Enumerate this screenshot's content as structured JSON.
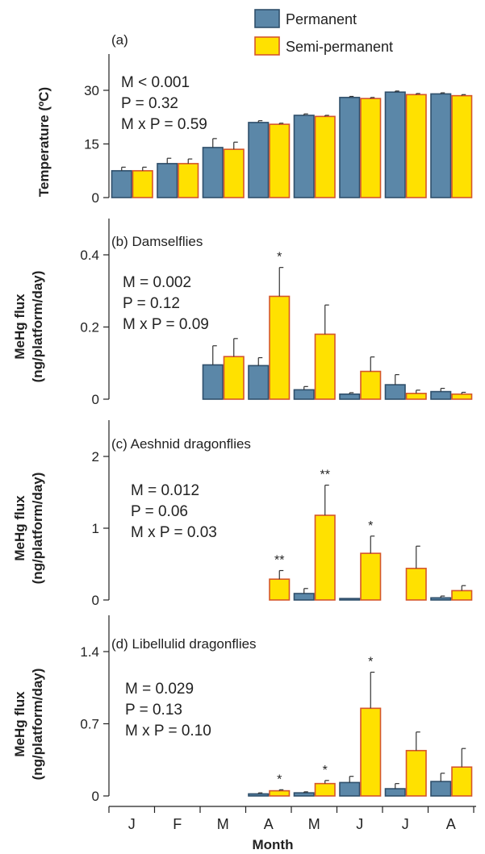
{
  "chart_data": {
    "type": "bar",
    "categories": [
      "J",
      "F",
      "M",
      "A",
      "M",
      "J",
      "J",
      "A"
    ],
    "xlabel": "Month",
    "legend": {
      "placement": "top",
      "entries": [
        {
          "name": "Permanent",
          "color": "#5B87A8",
          "edge": "#2F4F6B"
        },
        {
          "name": "Semi-permanent",
          "color": "#FFE100",
          "edge": "#D5562B"
        }
      ]
    },
    "panels": [
      {
        "title": "(a)",
        "ylabel": "Temperature (ºC)",
        "ylim": [
          0,
          30
        ],
        "yticks": [
          "0",
          "15",
          "30"
        ],
        "stats": [
          "M < 0.001",
          "P = 0.32",
          "M x P = 0.59"
        ],
        "series": [
          {
            "name": "Permanent",
            "values": [
              7.5,
              9.5,
              14,
              21,
              23,
              28,
              29.5,
              29
            ],
            "errors": [
              1.0,
              1.5,
              2.5,
              0.5,
              0.4,
              0.3,
              0.3,
              0.3
            ]
          },
          {
            "name": "Semi-permanent",
            "values": [
              7.5,
              9.5,
              13.5,
              20.5,
              22.7,
              27.7,
              28.8,
              28.5
            ],
            "errors": [
              1.0,
              1.3,
              2.0,
              0.3,
              0.3,
              0.3,
              0.3,
              0.3
            ]
          }
        ],
        "significance": [
          "",
          "",
          "",
          "",
          "",
          "",
          "",
          ""
        ]
      },
      {
        "title": "(b) Damselflies",
        "ylabel": "MeHg flux",
        "ylabel2": "(ng/platform/day)",
        "ylim": [
          0,
          0.4
        ],
        "yticks": [
          "0",
          "0.2",
          "0.4"
        ],
        "stats": [
          "M = 0.002",
          "P = 0.12",
          "M x P = 0.09"
        ],
        "series": [
          {
            "name": "Permanent",
            "values": [
              null,
              null,
              0.095,
              0.093,
              0.026,
              0.014,
              0.04,
              0.021
            ],
            "errors": [
              null,
              null,
              0.053,
              0.022,
              0.009,
              0.004,
              0.028,
              0.009
            ]
          },
          {
            "name": "Semi-permanent",
            "values": [
              null,
              null,
              0.118,
              0.285,
              0.18,
              0.077,
              0.016,
              0.014
            ],
            "errors": [
              null,
              null,
              0.05,
              0.08,
              0.081,
              0.04,
              0.009,
              0.005
            ]
          }
        ],
        "significance": [
          "",
          "",
          "",
          "*",
          "",
          "",
          "",
          ""
        ]
      },
      {
        "title": "(c) Aeshnid dragonflies",
        "ylabel": "MeHg flux",
        "ylabel2": "(ng/platform/day)",
        "ylim": [
          0,
          2
        ],
        "yticks": [
          "0",
          "1",
          "2"
        ],
        "stats": [
          "M = 0.012",
          "P = 0.06",
          "M x P = 0.03"
        ],
        "series": [
          {
            "name": "Permanent",
            "values": [
              null,
              null,
              null,
              null,
              0.09,
              0.02,
              null,
              0.03
            ],
            "errors": [
              null,
              null,
              null,
              null,
              0.07,
              0.0,
              null,
              0.025
            ]
          },
          {
            "name": "Semi-permanent",
            "values": [
              null,
              null,
              null,
              0.29,
              1.18,
              0.65,
              0.44,
              0.13
            ],
            "errors": [
              null,
              null,
              null,
              0.12,
              0.42,
              0.24,
              0.31,
              0.07
            ]
          }
        ],
        "significance": [
          "",
          "",
          "",
          "**",
          "**",
          "*",
          "",
          ""
        ]
      },
      {
        "title": "(d) Libellulid dragonflies",
        "ylabel": "MeHg flux",
        "ylabel2": "(ng/platform/day)",
        "ylim": [
          0,
          1.4
        ],
        "yticks": [
          "0",
          "0.7",
          "1.4"
        ],
        "stats": [
          "M = 0.029",
          "P = 0.13",
          "M x P = 0.10"
        ],
        "series": [
          {
            "name": "Permanent",
            "values": [
              null,
              null,
              null,
              0.02,
              0.03,
              0.13,
              0.07,
              0.14
            ],
            "errors": [
              null,
              null,
              null,
              0.01,
              0.01,
              0.06,
              0.05,
              0.08
            ]
          },
          {
            "name": "Semi-permanent",
            "values": [
              null,
              null,
              null,
              0.05,
              0.12,
              0.85,
              0.44,
              0.28
            ],
            "errors": [
              null,
              null,
              null,
              0.01,
              0.03,
              0.35,
              0.18,
              0.18
            ]
          }
        ],
        "significance": [
          "",
          "",
          "",
          "*",
          "*",
          "*",
          "",
          ""
        ]
      }
    ]
  }
}
